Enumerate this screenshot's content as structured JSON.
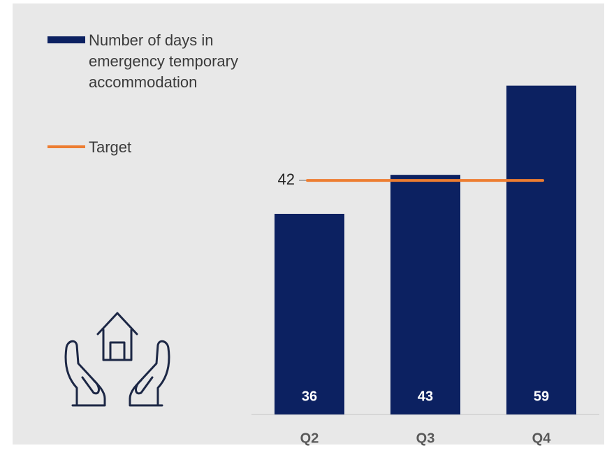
{
  "chart_data": {
    "type": "bar",
    "categories": [
      "Q2",
      "Q3",
      "Q4"
    ],
    "series": [
      {
        "name": "Number of days in emergency temporary accommodation",
        "color": "#0c2161",
        "values": [
          36,
          43,
          59
        ]
      }
    ],
    "target": {
      "name": "Target",
      "color": "#ed7d31",
      "value": 42
    },
    "ylim": [
      0,
      74
    ]
  }
}
